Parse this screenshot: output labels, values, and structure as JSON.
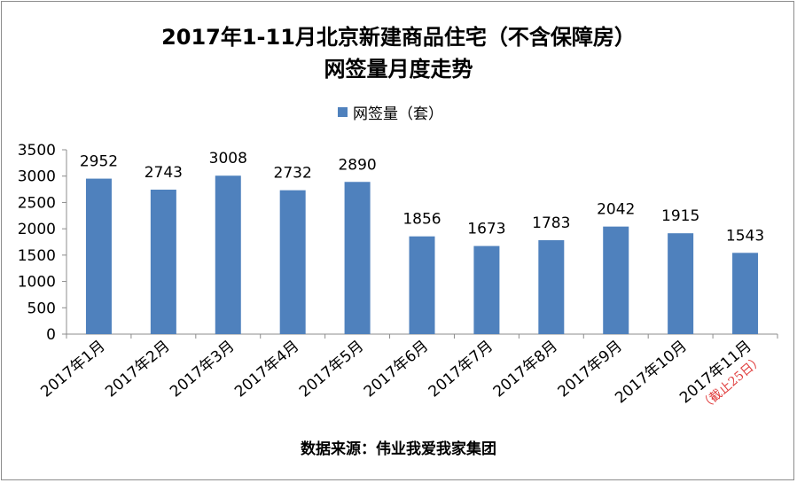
{
  "title_line1": "2017年1-11月北京新建商品住宅（不含保障房）",
  "title_line2": "网签量月度走势",
  "legend_label": "网签量（套）",
  "source_label": "数据来源：伟业我爱我家集团",
  "chart_data": {
    "type": "bar",
    "title": "2017年1-11月北京新建商品住宅（不含保障房） 网签量月度走势",
    "categories": [
      "2017年1月",
      "2017年2月",
      "2017年3月",
      "2017年4月",
      "2017年5月",
      "2017年6月",
      "2017年7月",
      "2017年8月",
      "2017年9月",
      "2017年10月",
      "2017年11月"
    ],
    "series": [
      {
        "name": "网签量（套）",
        "values": [
          2952,
          2743,
          3008,
          2732,
          2890,
          1856,
          1673,
          1783,
          2042,
          1915,
          1543
        ]
      }
    ],
    "category_notes": [
      null,
      null,
      null,
      null,
      null,
      null,
      null,
      null,
      null,
      null,
      "（截止25日）"
    ],
    "y_ticks": [
      0,
      500,
      1000,
      1500,
      2000,
      2500,
      3000,
      3500
    ],
    "ylim": [
      0,
      3500
    ],
    "grid": false,
    "legend_position": "top",
    "bar_color": "#4f81bd",
    "note_color": "#e03c3c"
  }
}
